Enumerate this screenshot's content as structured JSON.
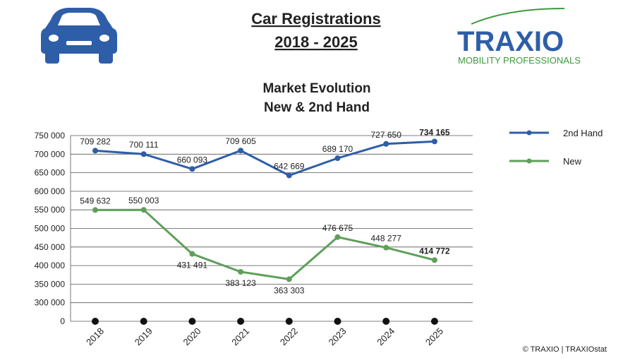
{
  "header": {
    "title_line1": "Car Registrations",
    "title_line2": "2018 - 2025",
    "logo": "TRAXIO",
    "logo_tagline": "MOBILITY PROFESSIONALS",
    "copyright": "© TRAXIO | TRAXIOstat"
  },
  "chart_data": {
    "type": "line",
    "title_line1": "Market Evolution",
    "title_line2": "New & 2nd Hand",
    "categories": [
      "2018",
      "2019",
      "2020",
      "2021",
      "2022",
      "2023",
      "2024",
      "2025"
    ],
    "series": [
      {
        "name": "2nd Hand",
        "color": "#2e5ea8",
        "values": [
          709282,
          700111,
          660093,
          709605,
          642669,
          689170,
          727650,
          734165
        ],
        "value_labels": [
          "709 282",
          "700 111",
          "660 093",
          "709 605",
          "642 669",
          "689 170",
          "727 650",
          "734 165"
        ]
      },
      {
        "name": "New",
        "color": "#5f9f5a",
        "values": [
          549632,
          550003,
          431491,
          383123,
          363303,
          476675,
          448277,
          414772
        ],
        "value_labels": [
          "549 632",
          "550 003",
          "431 491",
          "383 123",
          "363 303",
          "476 675",
          "448 277",
          "414 772"
        ]
      }
    ],
    "ylim": [
      0,
      750000
    ],
    "yticks": [
      0,
      {
        "value": 300000,
        "label": "300 000"
      },
      {
        "value": 350000,
        "label": "350 000"
      },
      {
        "value": 400000,
        "label": "400 000"
      },
      {
        "value": 450000,
        "label": "450 000"
      },
      {
        "value": 500000,
        "label": "500 000"
      },
      {
        "value": 550000,
        "label": "550 000"
      },
      {
        "value": 600000,
        "label": "600 000"
      },
      {
        "value": 650000,
        "label": "650 000"
      },
      {
        "value": 700000,
        "label": "700 000"
      },
      {
        "value": 750000,
        "label": "750 000"
      }
    ],
    "grid": true,
    "legend": "right"
  }
}
